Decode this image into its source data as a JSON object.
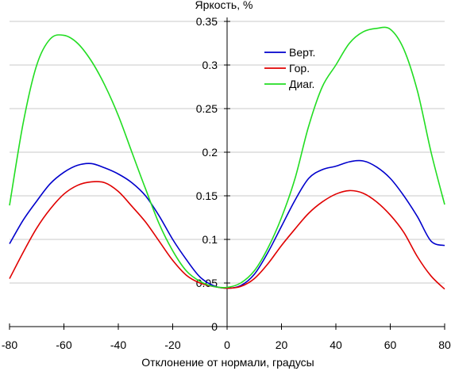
{
  "chart_data": {
    "type": "line",
    "title": "",
    "xlabel": "Отклонение от нормали, градусы",
    "ylabel": "Яркость, %",
    "xlim": [
      -80,
      80
    ],
    "ylim": [
      0,
      0.35
    ],
    "xticks": [
      -80,
      -60,
      -40,
      -20,
      0,
      20,
      40,
      60,
      80
    ],
    "xtick_labels": [
      "-80",
      "-60",
      "-40",
      "-20",
      "0",
      "20",
      "40",
      "60",
      "80"
    ],
    "yticks": [
      0,
      0.05,
      0.1,
      0.15,
      0.2,
      0.25,
      0.3,
      0.35
    ],
    "ytick_labels": [
      "0",
      "0.05",
      "0.1",
      "0.15",
      "0.2",
      "0.25",
      "0.3",
      "0.35"
    ],
    "grid": "horizontal",
    "legend_position": "top-right",
    "x": [
      -80,
      -75,
      -70,
      -65,
      -60,
      -55,
      -50,
      -45,
      -40,
      -35,
      -30,
      -25,
      -20,
      -15,
      -10,
      -5,
      0,
      5,
      10,
      15,
      20,
      25,
      30,
      35,
      40,
      45,
      50,
      55,
      60,
      65,
      70,
      75,
      80
    ],
    "series": [
      {
        "name": "Верт.",
        "color": "#0000cc",
        "values": [
          0.095,
          0.122,
          0.144,
          0.164,
          0.177,
          0.185,
          0.187,
          0.182,
          0.175,
          0.165,
          0.15,
          0.127,
          0.1,
          0.077,
          0.057,
          0.047,
          0.044,
          0.047,
          0.06,
          0.085,
          0.115,
          0.145,
          0.17,
          0.18,
          0.184,
          0.189,
          0.19,
          0.183,
          0.17,
          0.15,
          0.126,
          0.098,
          0.093
        ]
      },
      {
        "name": "Гор.",
        "color": "#e00000",
        "values": [
          0.055,
          0.085,
          0.113,
          0.135,
          0.152,
          0.162,
          0.166,
          0.165,
          0.155,
          0.138,
          0.12,
          0.098,
          0.076,
          0.059,
          0.05,
          0.046,
          0.044,
          0.046,
          0.055,
          0.072,
          0.093,
          0.112,
          0.13,
          0.143,
          0.152,
          0.156,
          0.153,
          0.143,
          0.128,
          0.108,
          0.08,
          0.058,
          0.043
        ]
      },
      {
        "name": "Диаг.",
        "color": "#22dd22",
        "values": [
          0.139,
          0.233,
          0.3,
          0.33,
          0.334,
          0.325,
          0.305,
          0.277,
          0.242,
          0.2,
          0.158,
          0.118,
          0.087,
          0.064,
          0.052,
          0.046,
          0.045,
          0.05,
          0.064,
          0.09,
          0.125,
          0.17,
          0.23,
          0.275,
          0.3,
          0.325,
          0.338,
          0.342,
          0.341,
          0.318,
          0.27,
          0.2,
          0.14
        ]
      }
    ]
  }
}
